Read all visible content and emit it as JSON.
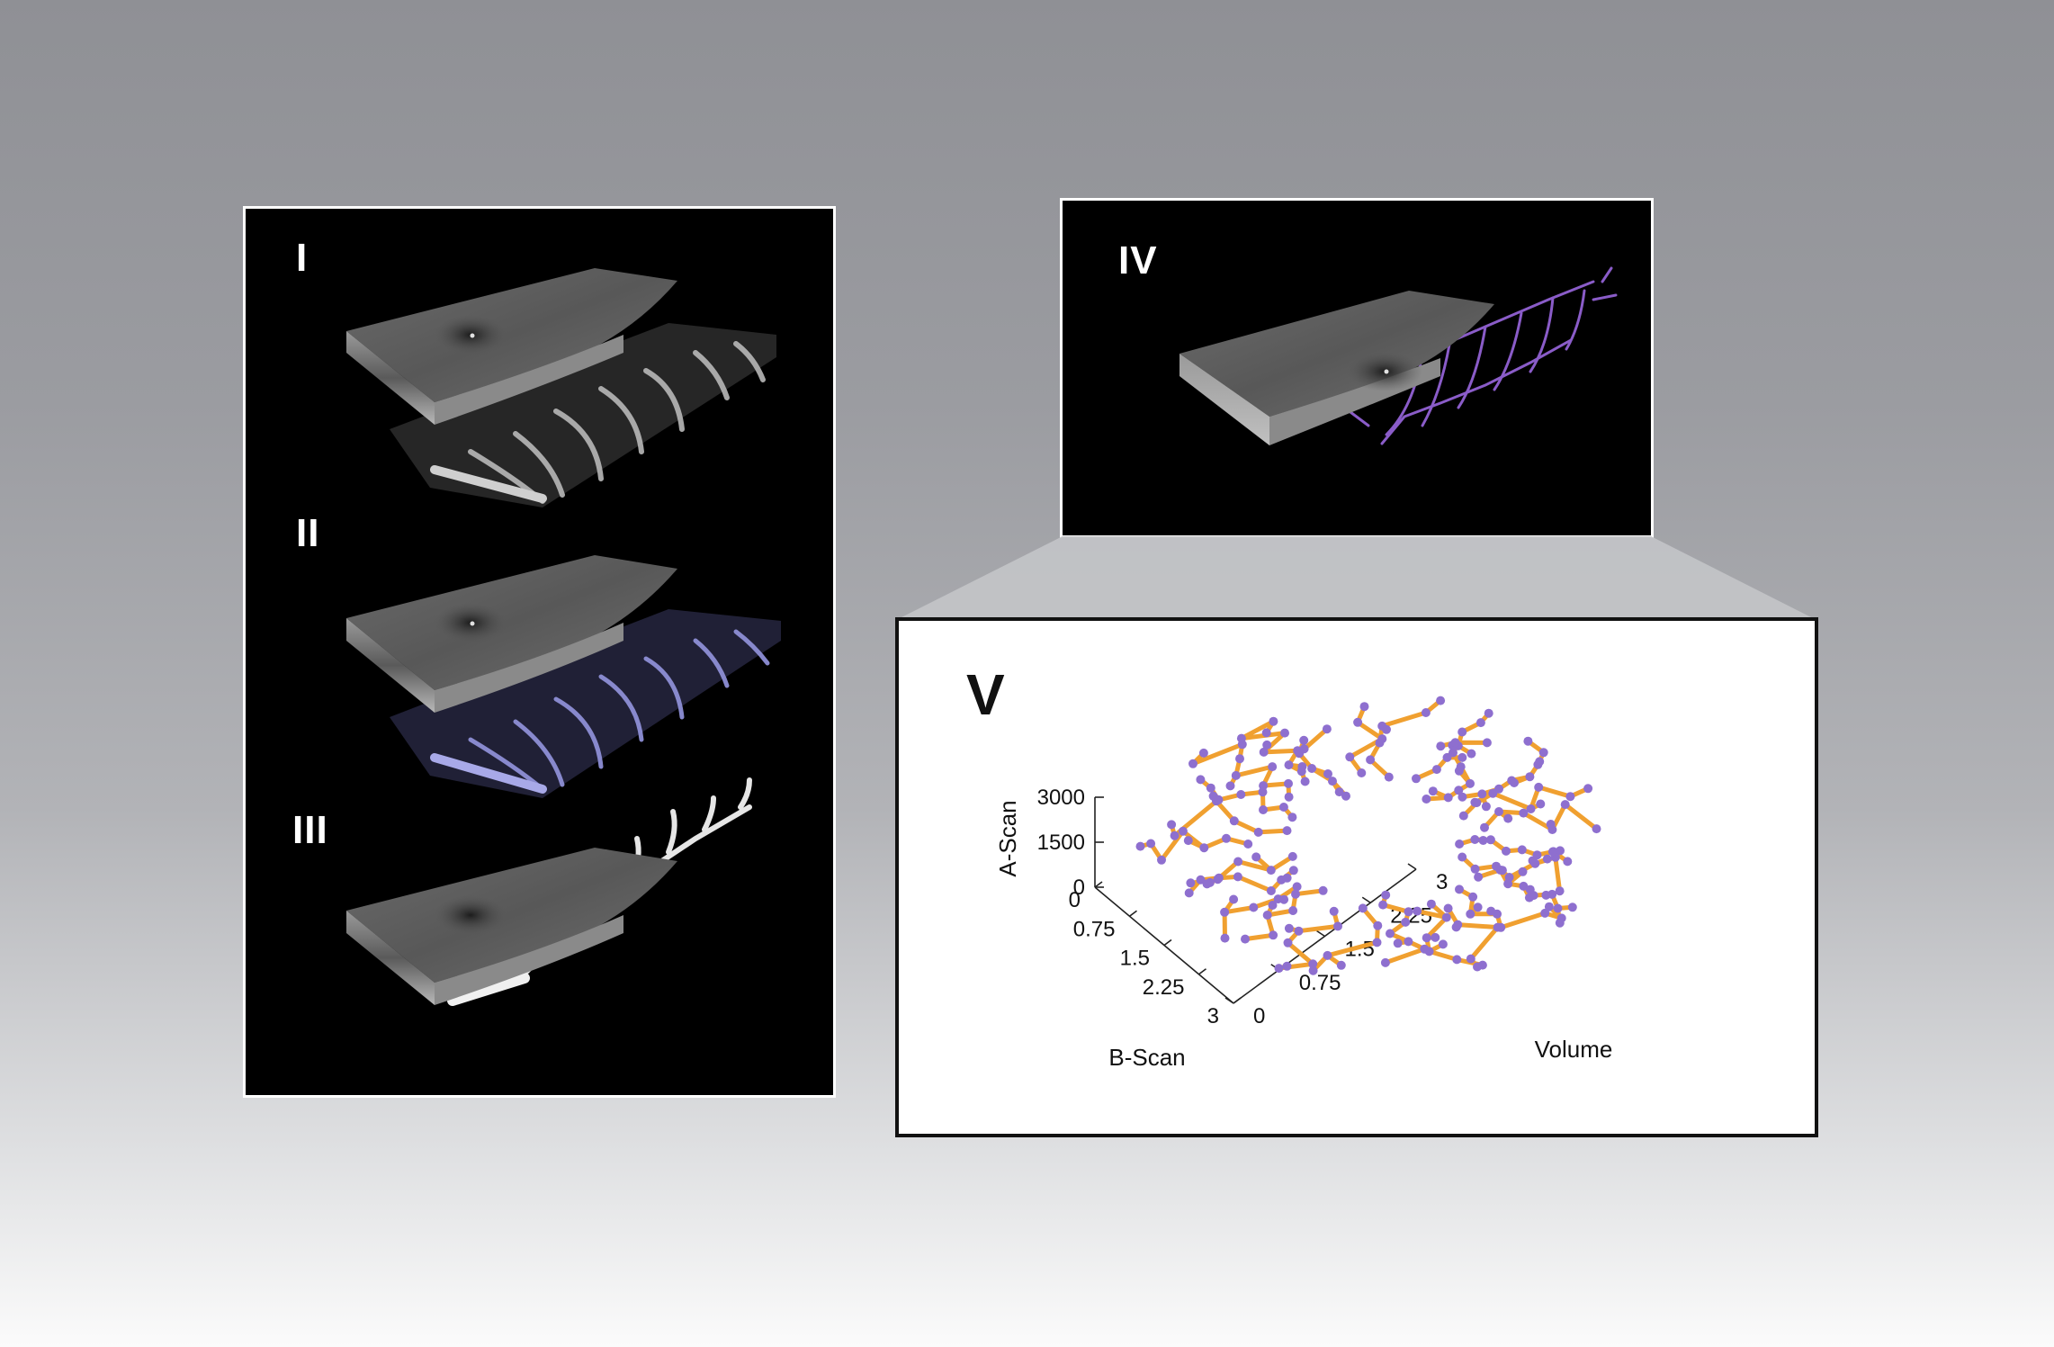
{
  "figure": {
    "panel_labels": {
      "I": "I",
      "II": "II",
      "III": "III",
      "IV": "IV",
      "V": "V"
    },
    "colors": {
      "background_top": "#8f9095",
      "background_bottom": "#fbfbfb",
      "vessel_lavender": "#8e8fd6",
      "vessel_white": "#e6e6e6",
      "vessel_purple": "#8a5cc8",
      "node_purple": "#8e6fcf",
      "edge_orange": "#f0a030"
    }
  },
  "chart_data": {
    "type": "scatter",
    "subtype": "3d-graph",
    "axes": {
      "z": {
        "label": "A-Scan",
        "ticks": [
          "3000",
          "1500",
          "0"
        ],
        "range": [
          0,
          3000
        ]
      },
      "x": {
        "label": "B-Scan",
        "ticks": [
          "0",
          "0.75",
          "1.5",
          "2.25",
          "3"
        ],
        "range": [
          0,
          3
        ]
      },
      "y": {
        "label": "Volume",
        "ticks": [
          "0",
          "0.75",
          "1.5",
          "2.25",
          "3"
        ],
        "range": [
          0,
          3
        ]
      }
    },
    "series": [
      {
        "name": "",
        "marks": "nodes",
        "color": "#8e6fcf"
      },
      {
        "name": "",
        "marks": "edges",
        "color": "#f0a030"
      }
    ]
  }
}
